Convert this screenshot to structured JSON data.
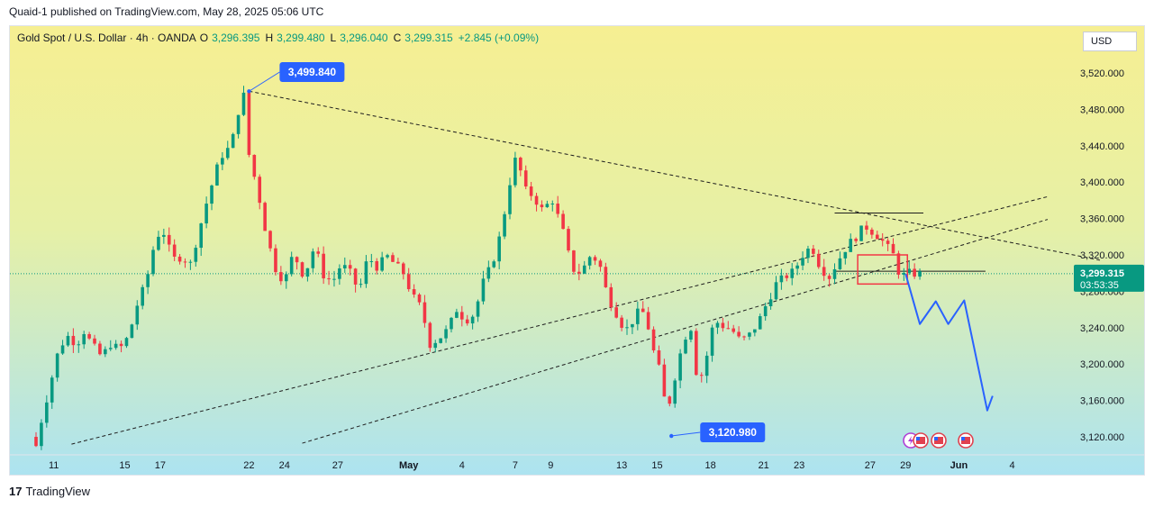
{
  "publish_line": "Quaid-1 published on TradingView.com, May 28, 2025 05:06 UTC",
  "legend": {
    "symbol": "Gold Spot / U.S. Dollar · 4h · OANDA",
    "o_label": "O",
    "o_value": "3,296.395",
    "h_label": "H",
    "h_value": "3,299.480",
    "l_label": "L",
    "l_value": "3,296.040",
    "c_label": "C",
    "c_value": "3,299.315",
    "change": "+2.845 (+0.09%)"
  },
  "currency": "USD",
  "brand": {
    "logo": "17",
    "text": "TradingView"
  },
  "colors": {
    "up": "#089981",
    "down": "#f23645",
    "accent": "#2962ff",
    "bg_top": "#f5ef93",
    "bg_bottom": "#aee4f0",
    "box": "#f23645"
  },
  "chart_data": {
    "type": "candlestick",
    "symbol": "XAUUSD",
    "timeframe": "4h",
    "ylim": [
      3090,
      3560
    ],
    "y_ticks": [
      3120,
      3160,
      3200,
      3240,
      3280,
      3320,
      3360,
      3400,
      3440,
      3480,
      3520
    ],
    "y_tick_labels": [
      "3,120.000",
      "3,160.000",
      "3,200.000",
      "3,240.000",
      "3,280.000",
      "3,320.000",
      "3,360.000",
      "3,400.000",
      "3,440.000",
      "3,480.000",
      "3,520.000"
    ],
    "x_ticks": [
      {
        "label": "11",
        "d": 1
      },
      {
        "label": "15",
        "d": 5
      },
      {
        "label": "17",
        "d": 7
      },
      {
        "label": "22",
        "d": 12
      },
      {
        "label": "24",
        "d": 14
      },
      {
        "label": "27",
        "d": 17
      },
      {
        "label": "May",
        "d": 21
      },
      {
        "label": "4",
        "d": 24
      },
      {
        "label": "7",
        "d": 27
      },
      {
        "label": "9",
        "d": 29
      },
      {
        "label": "13",
        "d": 33
      },
      {
        "label": "15",
        "d": 35
      },
      {
        "label": "18",
        "d": 38
      },
      {
        "label": "21",
        "d": 41
      },
      {
        "label": "23",
        "d": 43
      },
      {
        "label": "27",
        "d": 47
      },
      {
        "label": "29",
        "d": 49
      },
      {
        "label": "Jun",
        "d": 52
      },
      {
        "label": "4",
        "d": 55
      }
    ],
    "price_path": [
      [
        0,
        3120
      ],
      [
        0.3,
        3110
      ],
      [
        0.6,
        3138
      ],
      [
        1.0,
        3170
      ],
      [
        1.5,
        3210
      ],
      [
        2.0,
        3232
      ],
      [
        2.6,
        3222
      ],
      [
        3.0,
        3236
      ],
      [
        3.5,
        3220
      ],
      [
        4.0,
        3208
      ],
      [
        4.5,
        3222
      ],
      [
        5.0,
        3216
      ],
      [
        5.5,
        3230
      ],
      [
        6.0,
        3265
      ],
      [
        6.5,
        3290
      ],
      [
        7.0,
        3335
      ],
      [
        7.4,
        3350
      ],
      [
        8.0,
        3315
      ],
      [
        8.5,
        3318
      ],
      [
        9.0,
        3310
      ],
      [
        9.5,
        3348
      ],
      [
        10.0,
        3384
      ],
      [
        10.7,
        3428
      ],
      [
        11.3,
        3440
      ],
      [
        11.7,
        3478
      ],
      [
        12.0,
        3495
      ],
      [
        12.3,
        3430
      ],
      [
        12.8,
        3390
      ],
      [
        13.3,
        3340
      ],
      [
        13.8,
        3305
      ],
      [
        14.3,
        3290
      ],
      [
        14.8,
        3322
      ],
      [
        15.4,
        3296
      ],
      [
        16.0,
        3330
      ],
      [
        16.5,
        3298
      ],
      [
        17.0,
        3290
      ],
      [
        17.5,
        3310
      ],
      [
        18.0,
        3300
      ],
      [
        18.5,
        3280
      ],
      [
        19.0,
        3318
      ],
      [
        19.6,
        3305
      ],
      [
        20.0,
        3320
      ],
      [
        20.5,
        3310
      ],
      [
        21.0,
        3300
      ],
      [
        21.5,
        3275
      ],
      [
        22.0,
        3262
      ],
      [
        22.5,
        3222
      ],
      [
        23.0,
        3228
      ],
      [
        23.5,
        3238
      ],
      [
        24.0,
        3260
      ],
      [
        24.5,
        3248
      ],
      [
        25.0,
        3255
      ],
      [
        25.5,
        3290
      ],
      [
        26.0,
        3310
      ],
      [
        26.5,
        3345
      ],
      [
        27.0,
        3400
      ],
      [
        27.4,
        3432
      ],
      [
        27.8,
        3392
      ],
      [
        28.3,
        3385
      ],
      [
        28.8,
        3370
      ],
      [
        29.4,
        3380
      ],
      [
        30.0,
        3345
      ],
      [
        30.5,
        3305
      ],
      [
        31.0,
        3300
      ],
      [
        31.5,
        3318
      ],
      [
        32.0,
        3314
      ],
      [
        32.5,
        3275
      ],
      [
        33.0,
        3256
      ],
      [
        33.5,
        3236
      ],
      [
        34.0,
        3250
      ],
      [
        34.4,
        3262
      ],
      [
        34.8,
        3240
      ],
      [
        35.2,
        3205
      ],
      [
        35.6,
        3185
      ],
      [
        35.8,
        3140
      ],
      [
        36.2,
        3178
      ],
      [
        36.8,
        3228
      ],
      [
        37.2,
        3240
      ],
      [
        37.6,
        3176
      ],
      [
        38.0,
        3200
      ],
      [
        38.5,
        3248
      ],
      [
        39.0,
        3242
      ],
      [
        39.5,
        3238
      ],
      [
        40.0,
        3225
      ],
      [
        40.5,
        3232
      ],
      [
        41.0,
        3246
      ],
      [
        41.5,
        3268
      ],
      [
        42.0,
        3288
      ],
      [
        42.5,
        3296
      ],
      [
        43.0,
        3302
      ],
      [
        43.5,
        3320
      ],
      [
        44.0,
        3330
      ],
      [
        44.5,
        3306
      ],
      [
        45.0,
        3296
      ],
      [
        45.5,
        3314
      ],
      [
        46.0,
        3330
      ],
      [
        46.5,
        3340
      ],
      [
        47.0,
        3352
      ],
      [
        47.4,
        3346
      ],
      [
        47.8,
        3340
      ],
      [
        48.2,
        3330
      ],
      [
        48.6,
        3320
      ],
      [
        49.0,
        3296
      ],
      [
        49.5,
        3300
      ],
      [
        50.0,
        3299
      ]
    ],
    "forecast_path": [
      [
        49.0,
        3299
      ],
      [
        49.8,
        3244
      ],
      [
        50.7,
        3269
      ],
      [
        51.4,
        3244
      ],
      [
        52.3,
        3270
      ],
      [
        53.6,
        3149
      ],
      [
        53.9,
        3165
      ]
    ],
    "lines": [
      {
        "type": "dashed",
        "from": [
          12,
          3500
        ],
        "to": [
          60,
          3314
        ]
      },
      {
        "type": "dashed",
        "from": [
          2,
          3112
        ],
        "to": [
          57,
          3384
        ]
      },
      {
        "type": "dashed",
        "from": [
          15,
          3113
        ],
        "to": [
          57,
          3359
        ]
      },
      {
        "type": "solid",
        "from": [
          45,
          3366
        ],
        "to": [
          50,
          3366
        ]
      },
      {
        "type": "solid",
        "from": [
          45,
          3302
        ],
        "to": [
          53.5,
          3302
        ]
      }
    ],
    "current_price": {
      "value": 3299.315,
      "label": "3,299.315",
      "countdown": "03:53:35"
    },
    "callouts": [
      {
        "text": "3,499.840",
        "x": 12,
        "y": 3499.84
      },
      {
        "text": "3,120.980",
        "x": 35.8,
        "y": 3120.98
      }
    ],
    "box": {
      "x": [
        46.3,
        49.1
      ],
      "y": [
        3288,
        3320
      ]
    }
  }
}
